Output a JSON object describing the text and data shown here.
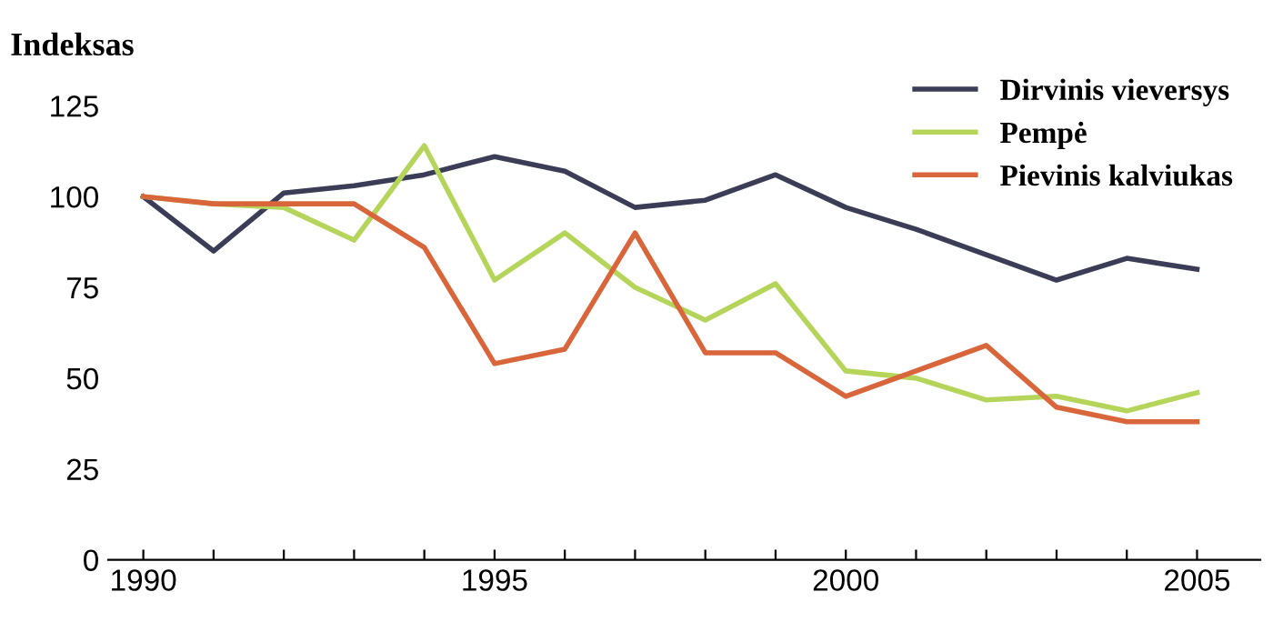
{
  "chart_data": {
    "type": "line",
    "ylabel": "Indeksas",
    "x": [
      1990,
      1991,
      1992,
      1993,
      1994,
      1995,
      1996,
      1997,
      1998,
      1999,
      2000,
      2001,
      2002,
      2003,
      2004,
      2005
    ],
    "series": [
      {
        "name": "Dirvinis vieversys",
        "color": "#3a3d55",
        "values": [
          100,
          85,
          101,
          103,
          106,
          111,
          107,
          97,
          99,
          106,
          97,
          91,
          84,
          77,
          83,
          80
        ]
      },
      {
        "name": "Pempė",
        "color": "#b5d45a",
        "values": [
          100,
          98,
          97,
          88,
          114,
          77,
          90,
          75,
          66,
          76,
          52,
          50,
          44,
          45,
          41,
          46
        ]
      },
      {
        "name": "Pievinis kalviukas",
        "color": "#d9653a",
        "values": [
          100,
          98,
          98,
          98,
          86,
          54,
          58,
          90,
          57,
          57,
          45,
          52,
          59,
          42,
          38,
          38
        ]
      }
    ],
    "xlim": [
      1989.5,
      2005.9
    ],
    "xticks": [
      1990,
      {
        "value": 1991,
        "label": null
      },
      {
        "value": 1992,
        "label": null
      },
      {
        "value": 1993,
        "label": null
      },
      {
        "value": 1994,
        "label": null
      },
      1995,
      {
        "value": 1996,
        "label": null
      },
      {
        "value": 1997,
        "label": null
      },
      {
        "value": 1998,
        "label": null
      },
      {
        "value": 1999,
        "label": null
      },
      2000,
      {
        "value": 2001,
        "label": null
      },
      {
        "value": 2002,
        "label": null
      },
      {
        "value": 2003,
        "label": null
      },
      {
        "value": 2004,
        "label": null
      },
      2005
    ],
    "ylim": [
      0,
      125
    ],
    "yticks": [
      0,
      25,
      50,
      75,
      100,
      125
    ],
    "grid": false,
    "legend": "top right",
    "marker": "none",
    "line_style": "solid"
  }
}
